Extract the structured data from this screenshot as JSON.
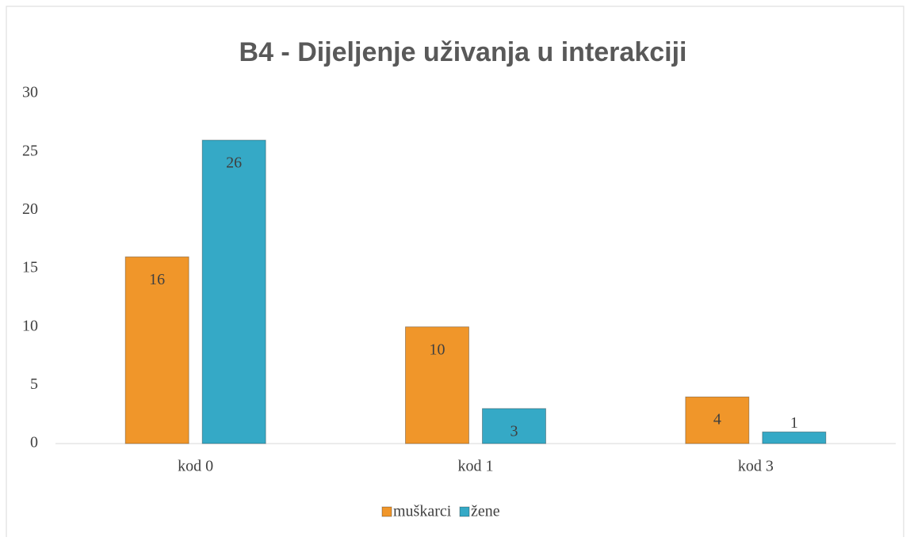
{
  "chart_data": {
    "type": "bar",
    "title": "B4 - Dijeljenje uživanja u interakciji",
    "categories": [
      "kod 0",
      "kod 1",
      "kod 3"
    ],
    "series": [
      {
        "name": "muškarci",
        "color": "#f0962a",
        "values": [
          16,
          10,
          4
        ]
      },
      {
        "name": "žene",
        "color": "#35a9c6",
        "values": [
          26,
          3,
          1
        ]
      }
    ],
    "ylim": [
      0,
      30
    ],
    "yticks": [
      0,
      5,
      10,
      15,
      20,
      25,
      30
    ],
    "grid": false,
    "legend": "bottom"
  }
}
